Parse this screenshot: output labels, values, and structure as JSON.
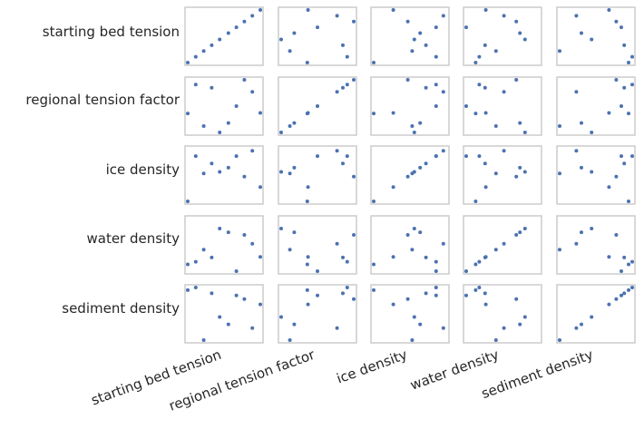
{
  "chart_data": {
    "type": "scatter",
    "title": "",
    "variables": [
      "starting bed tension",
      "regional tension factor",
      "ice density",
      "water density",
      "sediment density"
    ],
    "grid": false,
    "marker_color": "#4c72b0",
    "samples": [
      [
        0.0,
        0.36,
        0.0,
        0.13,
        0.95
      ],
      [
        0.11,
        0.91,
        0.86,
        0.18,
        1.0
      ],
      [
        0.22,
        0.12,
        0.53,
        0.41,
        0.0
      ],
      [
        0.33,
        0.85,
        0.72,
        0.26,
        0.89
      ],
      [
        0.44,
        0.0,
        0.56,
        0.81,
        0.44
      ],
      [
        0.56,
        0.18,
        0.64,
        0.74,
        0.3
      ],
      [
        0.67,
        0.5,
        0.86,
        0.0,
        0.85
      ],
      [
        0.78,
        1.0,
        0.47,
        0.69,
        0.78
      ],
      [
        0.89,
        0.77,
        0.96,
        0.52,
        0.23
      ],
      [
        1.0,
        0.37,
        0.27,
        0.27,
        0.68
      ]
    ]
  }
}
